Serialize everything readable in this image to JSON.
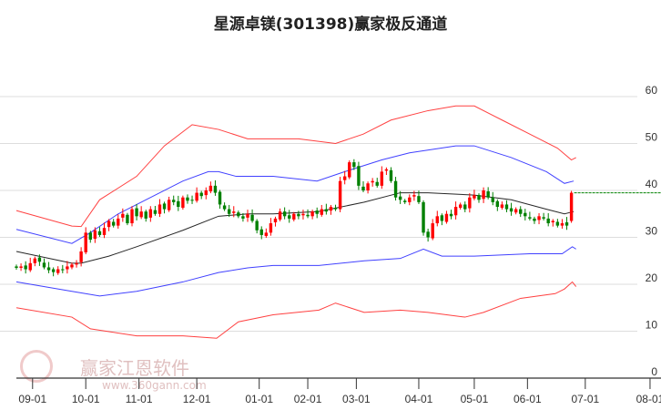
{
  "chart_data": {
    "type": "candlestick",
    "title": "星源卓镁(301398)赢家极反通道",
    "ylim": [
      0,
      60
    ],
    "y_ticks": [
      "0",
      "10",
      "20",
      "30",
      "40",
      "50",
      "60"
    ],
    "x_tick_labels": [
      "09-01",
      "10-01",
      "11-01",
      "12-01",
      "01-01",
      "02-01",
      "03-01",
      "04-01",
      "05-01",
      "06-01",
      "07-01",
      "08-01"
    ],
    "x_tick_index": [
      3.5,
      15,
      26.5,
      39,
      52.5,
      63,
      73.5,
      87,
      99,
      110.5,
      123,
      137
    ],
    "grid": true,
    "closes": [
      23.5,
      23.8,
      23.2,
      24.5,
      25.5,
      24.8,
      23.6,
      23.0,
      22.6,
      23.2,
      23.0,
      23.8,
      24.2,
      24.5,
      27,
      31,
      29.5,
      31.5,
      30.5,
      32,
      33.5,
      32.5,
      34,
      35,
      33,
      36,
      34.5,
      35.5,
      34,
      36,
      35,
      37,
      36,
      38,
      37.5,
      36.5,
      38.5,
      37.8,
      38,
      39.5,
      38.8,
      40,
      41,
      39.5,
      37,
      36,
      35,
      35.5,
      34.5,
      34,
      35,
      33.5,
      31.5,
      30.5,
      31,
      33,
      34,
      35.5,
      34.5,
      34,
      35,
      34.5,
      35,
      34.5,
      35.5,
      35,
      36,
      35.5,
      36.5,
      36,
      42,
      43,
      46,
      45,
      41,
      40,
      41.5,
      42,
      41,
      44,
      44.5,
      42,
      38.5,
      38,
      37.5,
      38.5,
      39,
      37.5,
      31,
      30,
      33,
      34.5,
      33.5,
      35,
      34.5,
      36.5,
      37,
      36,
      38.5,
      39,
      38,
      40,
      38.5,
      37.5,
      36.5,
      37,
      36,
      35.5,
      36,
      35,
      34.5,
      34,
      33.5,
      34.5,
      34,
      33,
      33.5,
      32.5,
      33,
      32.5,
      39.5
    ],
    "last_open": 33.5,
    "last_close_level": 39.5,
    "series": [
      {
        "name": "upper-outer",
        "color": "#ff2020",
        "points": [
          [
            0,
            35.7
          ],
          [
            12,
            32.4
          ],
          [
            14,
            32.3
          ],
          [
            18,
            38
          ],
          [
            26,
            43
          ],
          [
            32,
            49.5
          ],
          [
            38,
            54
          ],
          [
            43.7,
            53
          ],
          [
            50,
            51
          ],
          [
            55.5,
            51
          ],
          [
            61,
            51
          ],
          [
            69,
            50
          ],
          [
            75,
            52
          ],
          [
            81,
            55
          ],
          [
            89,
            57
          ],
          [
            95,
            58
          ],
          [
            99,
            58
          ],
          [
            105,
            55
          ],
          [
            111,
            52
          ],
          [
            117,
            49
          ],
          [
            120,
            46.5
          ],
          [
            121,
            47
          ]
        ]
      },
      {
        "name": "upper-inner",
        "color": "#2020ff",
        "points": [
          [
            0,
            31.7
          ],
          [
            12,
            28.7
          ],
          [
            16,
            31
          ],
          [
            22,
            35
          ],
          [
            28,
            38
          ],
          [
            36,
            42
          ],
          [
            41.5,
            44
          ],
          [
            43.7,
            44
          ],
          [
            47.5,
            43
          ],
          [
            55.5,
            43
          ],
          [
            65,
            42
          ],
          [
            71,
            44
          ],
          [
            79,
            46.5
          ],
          [
            85,
            48
          ],
          [
            95,
            49.5
          ],
          [
            99,
            49.5
          ],
          [
            107,
            47
          ],
          [
            114.6,
            44
          ],
          [
            118.5,
            41.5
          ],
          [
            120.5,
            42
          ]
        ]
      },
      {
        "name": "middle",
        "color": "#000000",
        "points": [
          [
            0,
            27
          ],
          [
            12,
            24.5
          ],
          [
            14,
            24.5
          ],
          [
            20,
            26
          ],
          [
            26,
            28
          ],
          [
            36,
            31.5
          ],
          [
            43.7,
            34.5
          ],
          [
            50,
            35
          ],
          [
            55.5,
            35
          ],
          [
            65.4,
            35.5
          ],
          [
            75.2,
            37.5
          ],
          [
            83,
            39.5
          ],
          [
            89,
            39.5
          ],
          [
            99,
            39
          ],
          [
            107,
            38
          ],
          [
            114.6,
            36
          ],
          [
            118.5,
            35
          ],
          [
            120.5,
            35.5
          ]
        ]
      },
      {
        "name": "lower-inner",
        "color": "#2020ff",
        "points": [
          [
            0,
            20.5
          ],
          [
            12,
            18.5
          ],
          [
            18,
            17.5
          ],
          [
            26,
            18.5
          ],
          [
            36,
            20.5
          ],
          [
            43.7,
            22.5
          ],
          [
            50,
            23.5
          ],
          [
            55.5,
            24
          ],
          [
            65.4,
            24
          ],
          [
            75.2,
            25
          ],
          [
            83,
            25.5
          ],
          [
            88,
            27.5
          ],
          [
            92,
            26
          ],
          [
            99,
            26
          ],
          [
            111,
            26.5
          ],
          [
            118,
            26.5
          ],
          [
            120.2,
            28
          ],
          [
            121,
            27.5
          ]
        ]
      },
      {
        "name": "lower-outer",
        "color": "#ff2020",
        "points": [
          [
            0,
            15
          ],
          [
            12,
            13
          ],
          [
            16,
            10.5
          ],
          [
            26,
            9
          ],
          [
            36,
            9
          ],
          [
            43.3,
            8.5
          ],
          [
            48,
            12
          ],
          [
            55.5,
            13.5
          ],
          [
            65.4,
            14.5
          ],
          [
            69,
            16
          ],
          [
            75.2,
            14
          ],
          [
            83,
            14.5
          ],
          [
            89,
            14
          ],
          [
            97,
            13
          ],
          [
            101,
            14
          ],
          [
            109,
            17
          ],
          [
            116.5,
            18
          ],
          [
            118.5,
            19
          ],
          [
            120.2,
            20.5
          ],
          [
            121,
            19.5
          ]
        ]
      }
    ],
    "colors": {
      "up": "#ff0000",
      "down": "#008000",
      "grid": "#dddddd",
      "axis": "#333333"
    }
  },
  "watermark": {
    "brand": "赢家江恩软件",
    "url": "www.360gann.com",
    "seal": "江赢恩家"
  }
}
